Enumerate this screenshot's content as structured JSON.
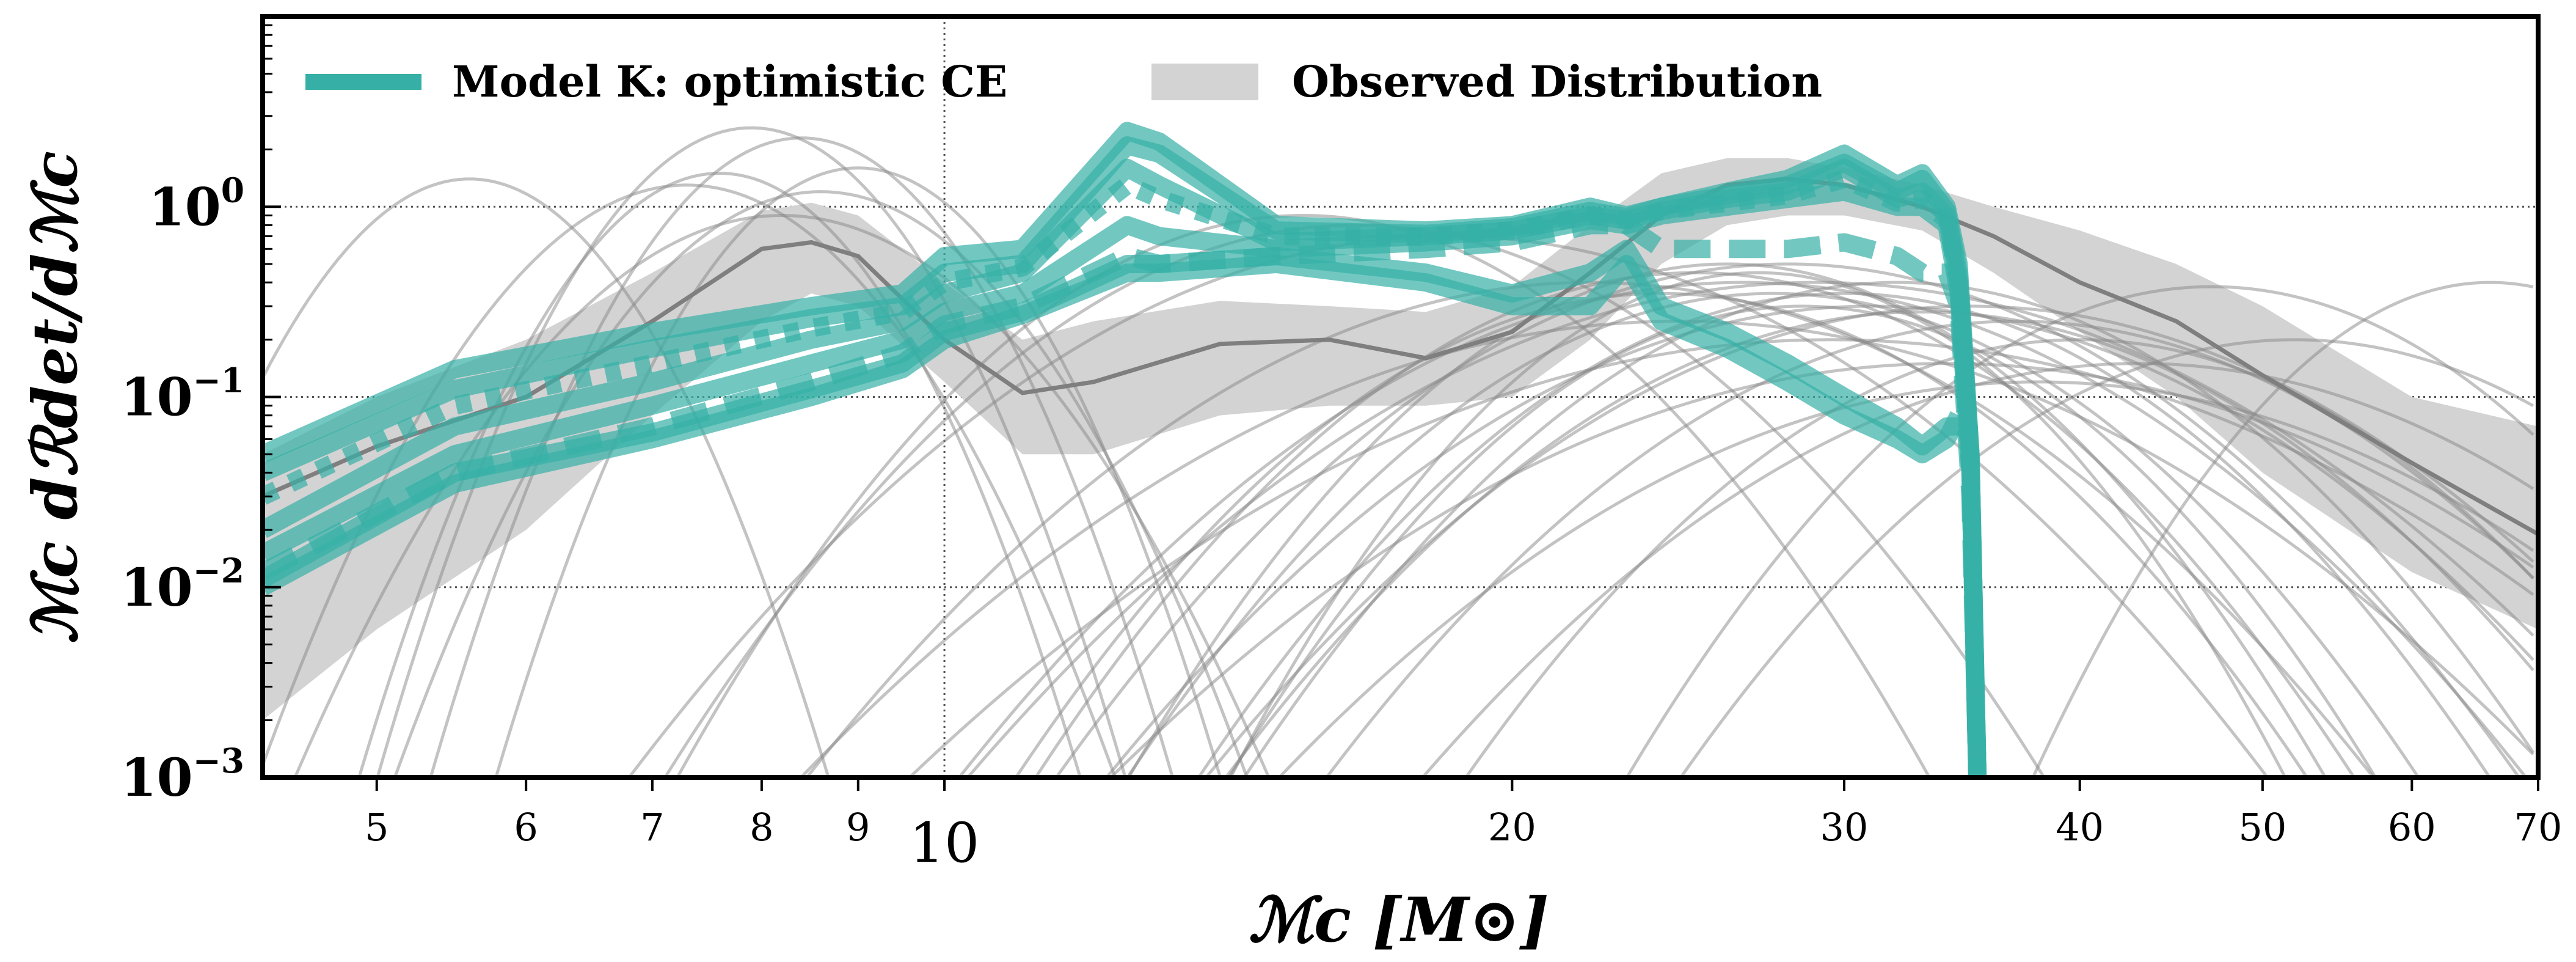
{
  "chart_data": {
    "type": "line",
    "xlabel": "ℳc [M⊙]",
    "ylabel": "ℳc dℛdet/dℳc",
    "xscale": "log",
    "yscale": "log",
    "xlim": [
      4.35,
      70
    ],
    "ylim": [
      0.001,
      10
    ],
    "grid": "dotted lines at y decades and x = 10",
    "legend_placement": "top-left",
    "x_ticks": [
      "5",
      "6",
      "7",
      "8",
      "9",
      "10",
      "20",
      "30",
      "40",
      "50",
      "60",
      "70"
    ],
    "x_tick_values": [
      5,
      6,
      7,
      8,
      9,
      10,
      20,
      30,
      40,
      50,
      60,
      70
    ],
    "y_ticks": [
      {
        "base": "10",
        "exp": "0",
        "value": 1
      },
      {
        "base": "10",
        "exp": "−1",
        "value": 0.1
      },
      {
        "base": "10",
        "exp": "−2",
        "value": 0.01
      },
      {
        "base": "10",
        "exp": "−3",
        "value": 0.001
      }
    ],
    "legend": [
      {
        "label": "Model K: optimistic CE",
        "kind": "line",
        "color": "#36b0a6"
      },
      {
        "label": "Observed Distribution",
        "kind": "patch",
        "color": "#d3d3d3"
      }
    ],
    "observed": {
      "color_band": "#d3d3d3",
      "color_median": "#7f7f7f",
      "x": [
        4.35,
        5,
        6,
        7,
        8,
        8.5,
        9,
        10,
        11,
        12,
        14,
        16,
        18,
        20,
        22,
        24,
        26,
        28,
        30,
        33,
        36,
        40,
        45,
        50,
        60,
        70
      ],
      "median": [
        0.03,
        0.055,
        0.1,
        0.25,
        0.6,
        0.65,
        0.55,
        0.2,
        0.105,
        0.12,
        0.19,
        0.2,
        0.16,
        0.22,
        0.45,
        0.9,
        1.3,
        1.4,
        1.3,
        1.0,
        0.7,
        0.4,
        0.25,
        0.13,
        0.045,
        0.019
      ],
      "upper": [
        0.05,
        0.1,
        0.2,
        0.45,
        0.95,
        1.05,
        0.9,
        0.4,
        0.2,
        0.25,
        0.32,
        0.3,
        0.28,
        0.38,
        0.8,
        1.5,
        1.8,
        1.8,
        1.6,
        1.3,
        1.0,
        0.75,
        0.5,
        0.3,
        0.1,
        0.07
      ],
      "lower": [
        0.002,
        0.006,
        0.02,
        0.08,
        0.25,
        0.35,
        0.3,
        0.12,
        0.05,
        0.05,
        0.08,
        0.09,
        0.09,
        0.1,
        0.2,
        0.5,
        0.8,
        0.9,
        0.9,
        0.75,
        0.45,
        0.22,
        0.1,
        0.04,
        0.012,
        0.006
      ]
    },
    "event_curves_color": "#888888",
    "event_curves": [
      {
        "center": 5.6,
        "peak": 1.4,
        "width": 0.05
      },
      {
        "center": 7.3,
        "peak": 1.3,
        "width": 0.06
      },
      {
        "center": 7.6,
        "peak": 1.5,
        "width": 0.05
      },
      {
        "center": 7.9,
        "peak": 2.6,
        "width": 0.05
      },
      {
        "center": 8.4,
        "peak": 2.3,
        "width": 0.05
      },
      {
        "center": 8.6,
        "peak": 1.2,
        "width": 0.06
      },
      {
        "center": 9.0,
        "peak": 1.6,
        "width": 0.05
      },
      {
        "center": 8.2,
        "peak": 0.9,
        "width": 0.07
      },
      {
        "center": 15.5,
        "peak": 0.9,
        "width": 0.09
      },
      {
        "center": 16.5,
        "peak": 0.8,
        "width": 0.1
      },
      {
        "center": 18.5,
        "peak": 0.7,
        "width": 0.12
      },
      {
        "center": 22,
        "peak": 0.4,
        "width": 0.12
      },
      {
        "center": 24,
        "peak": 0.35,
        "width": 0.1
      },
      {
        "center": 25,
        "peak": 0.45,
        "width": 0.1
      },
      {
        "center": 26,
        "peak": 0.5,
        "width": 0.09
      },
      {
        "center": 26.5,
        "peak": 0.4,
        "width": 0.12
      },
      {
        "center": 27,
        "peak": 0.45,
        "width": 0.08
      },
      {
        "center": 27.5,
        "peak": 0.35,
        "width": 0.1
      },
      {
        "center": 28,
        "peak": 0.5,
        "width": 0.11
      },
      {
        "center": 28.5,
        "peak": 0.3,
        "width": 0.09
      },
      {
        "center": 29,
        "peak": 0.4,
        "width": 0.13
      },
      {
        "center": 30,
        "peak": 0.35,
        "width": 0.1
      },
      {
        "center": 31,
        "peak": 0.3,
        "width": 0.12
      },
      {
        "center": 32,
        "peak": 0.4,
        "width": 0.1
      },
      {
        "center": 33,
        "peak": 0.28,
        "width": 0.11
      },
      {
        "center": 35,
        "peak": 0.3,
        "width": 0.12
      },
      {
        "center": 37,
        "peak": 0.25,
        "width": 0.11
      },
      {
        "center": 40,
        "peak": 0.2,
        "width": 0.1
      },
      {
        "center": 43,
        "peak": 0.15,
        "width": 0.12
      },
      {
        "center": 47,
        "peak": 0.38,
        "width": 0.09
      },
      {
        "center": 52,
        "peak": 0.2,
        "width": 0.1
      },
      {
        "center": 66,
        "peak": 0.4,
        "width": 0.07
      },
      {
        "center": 24.5,
        "peak": 0.25,
        "width": 0.14
      },
      {
        "center": 29.5,
        "peak": 0.2,
        "width": 0.15
      },
      {
        "center": 34,
        "peak": 0.15,
        "width": 0.14
      },
      {
        "center": 38,
        "peak": 0.12,
        "width": 0.13
      }
    ],
    "model_color": "#36b0a6",
    "model_x": [
      4.35,
      5.5,
      7,
      8.5,
      9.5,
      10,
      11,
      12.5,
      13,
      15,
      18,
      20,
      22,
      23,
      24,
      26,
      28,
      30,
      32,
      33,
      34,
      34.5,
      35,
      35.3
    ],
    "model_series": [
      {
        "style": "solid",
        "values": [
          0.05,
          0.14,
          0.22,
          0.3,
          0.35,
          0.55,
          0.6,
          2.5,
          2.2,
          0.8,
          0.75,
          0.8,
          1.0,
          0.9,
          1.0,
          1.2,
          1.4,
          1.9,
          1.3,
          1.5,
          1.0,
          0.5,
          0.05,
          0.001
        ]
      },
      {
        "style": "solid",
        "values": [
          0.04,
          0.11,
          0.18,
          0.26,
          0.3,
          0.45,
          0.5,
          2.1,
          1.9,
          0.75,
          0.72,
          0.78,
          0.95,
          0.88,
          1.0,
          1.15,
          1.3,
          1.7,
          1.2,
          1.4,
          0.95,
          0.45,
          0.05,
          0.001
        ]
      },
      {
        "style": "solid",
        "values": [
          0.02,
          0.07,
          0.12,
          0.2,
          0.25,
          0.35,
          0.45,
          1.6,
          1.3,
          0.65,
          0.7,
          0.75,
          0.9,
          0.85,
          0.95,
          1.1,
          1.2,
          1.6,
          1.1,
          1.2,
          0.9,
          0.4,
          0.05,
          0.001
        ]
      },
      {
        "style": "dotted",
        "values": [
          0.03,
          0.09,
          0.15,
          0.23,
          0.28,
          0.4,
          0.48,
          1.3,
          1.1,
          0.7,
          0.7,
          0.75,
          0.9,
          0.85,
          0.95,
          1.05,
          1.15,
          1.4,
          1.05,
          1.1,
          0.85,
          0.4,
          0.04,
          0.001
        ]
      },
      {
        "style": "solid",
        "values": [
          0.015,
          0.05,
          0.09,
          0.15,
          0.2,
          0.28,
          0.35,
          0.8,
          0.7,
          0.6,
          0.65,
          0.7,
          0.85,
          0.8,
          0.9,
          1.0,
          1.1,
          1.2,
          1.0,
          1.0,
          0.8,
          0.35,
          0.04,
          0.001
        ]
      },
      {
        "style": "dashed",
        "values": [
          0.012,
          0.04,
          0.07,
          0.12,
          0.17,
          0.24,
          0.3,
          0.55,
          0.5,
          0.55,
          0.6,
          0.65,
          0.8,
          0.8,
          0.6,
          0.6,
          0.6,
          0.65,
          0.55,
          0.45,
          0.45,
          0.3,
          0.03,
          0.001
        ]
      },
      {
        "style": "solid",
        "values": [
          0.01,
          0.035,
          0.06,
          0.1,
          0.14,
          0.2,
          0.27,
          0.45,
          0.45,
          0.5,
          0.4,
          0.3,
          0.3,
          0.5,
          0.25,
          0.18,
          0.12,
          0.08,
          0.06,
          0.05,
          0.06,
          0.08,
          null,
          null
        ]
      },
      {
        "style": "solid",
        "values": [
          0.011,
          0.04,
          0.065,
          0.11,
          0.15,
          0.22,
          0.28,
          0.5,
          0.5,
          0.55,
          0.45,
          0.35,
          0.45,
          0.6,
          0.3,
          0.22,
          0.15,
          0.1,
          0.07,
          0.055,
          0.07,
          0.07,
          null,
          null
        ]
      }
    ]
  }
}
